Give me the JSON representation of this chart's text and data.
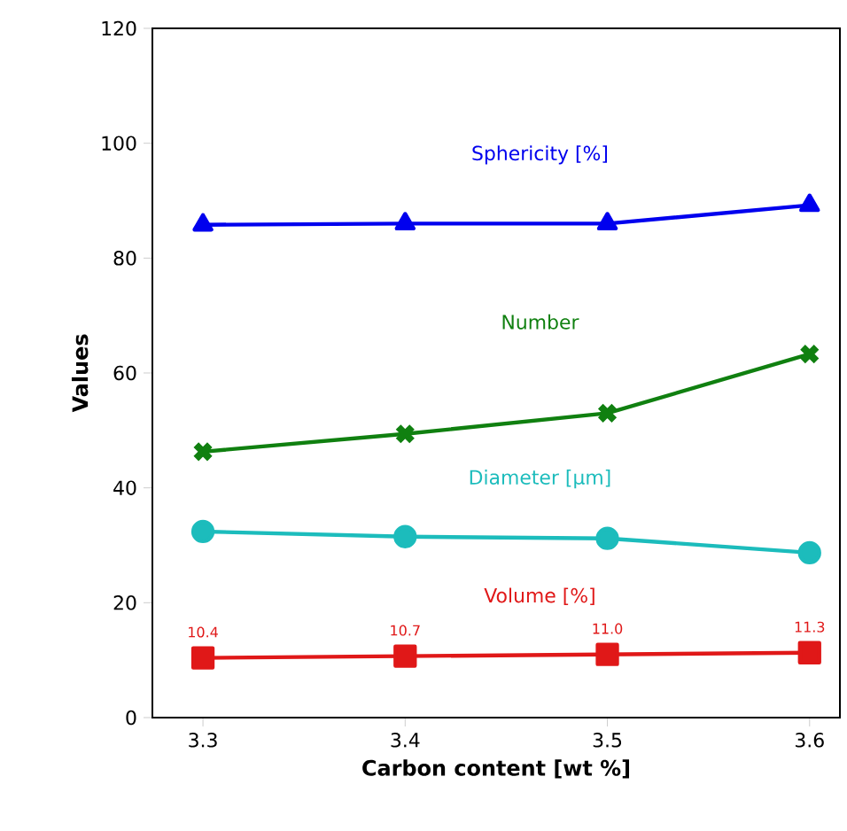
{
  "chart_data": {
    "type": "line",
    "xlabel": "Carbon content [wt %]",
    "ylabel": "Values",
    "x": [
      3.3,
      3.4,
      3.5,
      3.6
    ],
    "xlim": [
      3.275,
      3.615
    ],
    "ylim": [
      0,
      120
    ],
    "xticks": [
      3.3,
      3.4,
      3.5,
      3.6
    ],
    "yticks": [
      0,
      20,
      40,
      60,
      80,
      100,
      120
    ],
    "legend": false,
    "grid": false,
    "line_style": "solid",
    "series": [
      {
        "name": "Sphericity [%]",
        "color": "#0000ee",
        "marker": "triangle",
        "values": [
          85.8,
          86.0,
          86.0,
          89.2
        ]
      },
      {
        "name": "Number",
        "color": "#108010",
        "marker": "cross",
        "values": [
          46.3,
          49.4,
          53.0,
          63.3
        ]
      },
      {
        "name": "Diameter [µm]",
        "color": "#1cbcbc",
        "marker": "circle",
        "values": [
          32.4,
          31.5,
          31.2,
          28.7
        ]
      },
      {
        "name": "Volume [%]",
        "color": "#e01818",
        "marker": "square",
        "values": [
          10.4,
          10.7,
          11.0,
          11.3
        ],
        "value_labels": [
          "10.4",
          "10.7",
          "11.0",
          "11.3"
        ]
      }
    ]
  }
}
